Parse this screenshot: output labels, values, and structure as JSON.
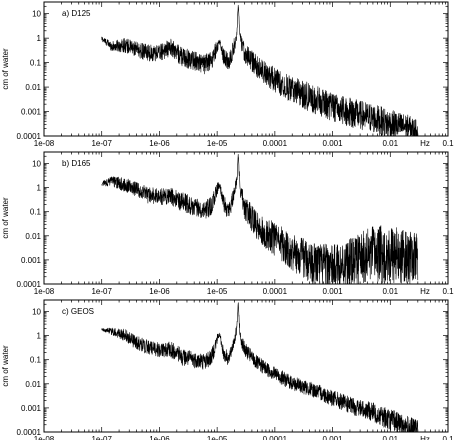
{
  "chart_data": [
    {
      "type": "line",
      "panel_label": "a) D125",
      "ylabel": "cm of water",
      "xunit": "Hz",
      "xscale": "log",
      "yscale": "log",
      "xlim": [
        1e-08,
        0.1
      ],
      "ylim": [
        0.0001,
        30
      ],
      "xticks": [
        "1e-08",
        "1e-07",
        "1e-06",
        "1e-05",
        "0.0001",
        "0.001",
        "0.01",
        "0.1"
      ],
      "yticks": [
        "0.0001",
        "0.001",
        "0.01",
        "0.1",
        "1",
        "10"
      ],
      "series": [
        {
          "x": [
            1e-07,
            1.5e-07,
            2.5e-07,
            4e-07,
            6e-07,
            1e-06,
            1.6e-06,
            2.5e-06,
            4e-06,
            6e-06,
            8e-06,
            1e-05,
            1.1e-05,
            1.3e-05,
            1.6e-05,
            1.9e-05,
            2.2e-05,
            2.32e-05,
            2.5e-05,
            3e-05,
            5e-05,
            0.0001,
            0.0002,
            0.0005,
            0.001,
            0.002,
            0.005,
            0.01,
            0.02,
            0.03
          ],
          "y": [
            1.0,
            0.5,
            0.6,
            0.4,
            0.3,
            0.3,
            0.5,
            0.2,
            0.15,
            0.1,
            0.15,
            0.5,
            0.8,
            0.2,
            0.12,
            0.4,
            1.5,
            25,
            1.0,
            0.3,
            0.08,
            0.025,
            0.01,
            0.004,
            0.002,
            0.0012,
            0.0007,
            0.0004,
            0.0003,
            0.0002
          ],
          "noise": [
            0.1,
            0.2,
            0.3,
            0.3,
            0.35,
            0.35,
            0.35,
            0.4,
            0.4,
            0.4,
            0.4,
            0.3,
            0.1,
            0.35,
            0.35,
            0.35,
            0.2,
            0.05,
            0.3,
            0.4,
            0.45,
            0.5,
            0.55,
            0.6,
            0.6,
            0.6,
            0.6,
            0.6,
            0.5,
            0.4
          ]
        }
      ]
    },
    {
      "type": "line",
      "panel_label": "b) D165",
      "ylabel": "cm of water",
      "xunit": "Hz",
      "xscale": "log",
      "yscale": "log",
      "xlim": [
        1e-08,
        0.1
      ],
      "ylim": [
        0.0001,
        30
      ],
      "xticks": [
        "1e-08",
        "1e-07",
        "1e-06",
        "1e-05",
        "0.0001",
        "0.001",
        "0.01",
        "0.1"
      ],
      "yticks": [
        "0.0001",
        "0.001",
        "0.01",
        "0.1",
        "1",
        "10"
      ],
      "series": [
        {
          "x": [
            1e-07,
            1.5e-07,
            2.5e-07,
            4e-07,
            6e-07,
            1e-06,
            1.6e-06,
            2.5e-06,
            4e-06,
            6e-06,
            8e-06,
            1e-05,
            1.1e-05,
            1.3e-05,
            1.6e-05,
            1.9e-05,
            2.2e-05,
            2.32e-05,
            2.5e-05,
            3e-05,
            5e-05,
            0.0001,
            0.0002,
            0.0005,
            0.001,
            0.002,
            0.005,
            0.01,
            0.02,
            0.03
          ],
          "y": [
            1.5,
            2.0,
            1.5,
            1.0,
            0.6,
            0.5,
            0.5,
            0.3,
            0.2,
            0.15,
            0.2,
            1.0,
            1.5,
            0.25,
            0.12,
            0.5,
            2.0,
            25,
            1.0,
            0.2,
            0.03,
            0.01,
            0.003,
            0.001,
            0.0008,
            0.0012,
            0.003,
            0.003,
            0.002,
            0.002
          ],
          "noise": [
            0.1,
            0.2,
            0.3,
            0.3,
            0.35,
            0.35,
            0.35,
            0.4,
            0.4,
            0.4,
            0.4,
            0.3,
            0.1,
            0.35,
            0.35,
            0.35,
            0.2,
            0.05,
            0.3,
            0.5,
            0.6,
            0.7,
            0.8,
            0.9,
            0.9,
            1.0,
            1.2,
            1.2,
            1.1,
            1.0
          ]
        }
      ]
    },
    {
      "type": "line",
      "panel_label": "c) GEOS",
      "ylabel": "cm of water",
      "xunit": "Hz",
      "xscale": "log",
      "yscale": "log",
      "xlim": [
        1e-08,
        0.1
      ],
      "ylim": [
        0.0001,
        30
      ],
      "xticks": [
        "1e-08",
        "1e-07",
        "1e-06",
        "1e-05",
        "0.0001",
        "0.001",
        "0.01",
        "0.1"
      ],
      "yticks": [
        "0.0001",
        "0.001",
        "0.01",
        "0.1",
        "1",
        "10"
      ],
      "series": [
        {
          "x": [
            1e-07,
            1.5e-07,
            2.5e-07,
            4e-07,
            6e-07,
            1e-06,
            1.6e-06,
            2.5e-06,
            4e-06,
            6e-06,
            8e-06,
            1e-05,
            1.1e-05,
            1.3e-05,
            1.6e-05,
            1.9e-05,
            2.2e-05,
            2.32e-05,
            2.5e-05,
            3e-05,
            5e-05,
            0.0001,
            0.0002,
            0.0005,
            0.001,
            0.002,
            0.005,
            0.01,
            0.02,
            0.03
          ],
          "y": [
            1.8,
            1.6,
            1.2,
            0.6,
            0.4,
            0.3,
            0.3,
            0.15,
            0.12,
            0.1,
            0.15,
            0.8,
            1.2,
            0.2,
            0.12,
            0.5,
            2.0,
            25,
            1.0,
            0.3,
            0.08,
            0.03,
            0.012,
            0.006,
            0.003,
            0.0015,
            0.0008,
            0.0004,
            0.0002,
            0.00015
          ],
          "noise": [
            0.05,
            0.15,
            0.25,
            0.3,
            0.3,
            0.3,
            0.35,
            0.35,
            0.35,
            0.35,
            0.35,
            0.3,
            0.1,
            0.3,
            0.3,
            0.3,
            0.2,
            0.05,
            0.25,
            0.3,
            0.3,
            0.3,
            0.3,
            0.3,
            0.35,
            0.35,
            0.4,
            0.45,
            0.45,
            0.4
          ]
        }
      ]
    }
  ]
}
